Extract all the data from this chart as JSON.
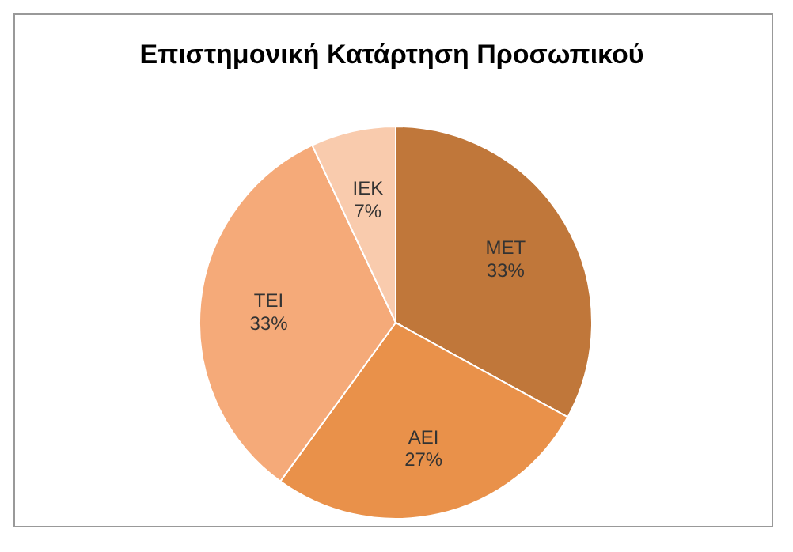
{
  "chart_data": {
    "type": "pie",
    "title": "Επιστημονική Κατάρτηση Προσωπικού",
    "categories": [
      "MET",
      "AEI",
      "TEI",
      "IEK"
    ],
    "values": [
      33,
      27,
      33,
      7
    ],
    "colors": [
      "#c0773a",
      "#e9914a",
      "#f5aa79",
      "#f9cbad"
    ],
    "value_labels": [
      "33%",
      "27%",
      "33%",
      "7%"
    ],
    "legend": false
  }
}
